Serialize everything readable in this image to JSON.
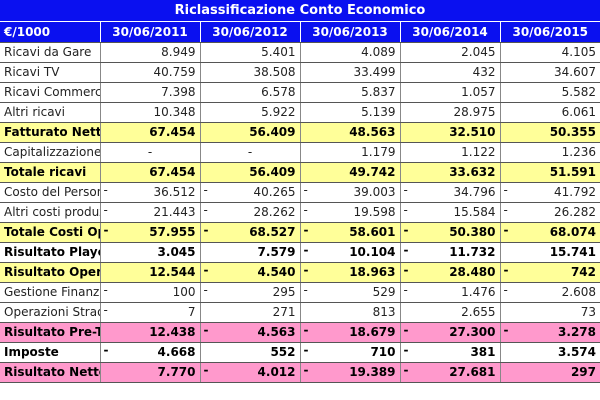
{
  "title": "Riclassificazione Conto Economico",
  "header": {
    "label": "€/1000",
    "columns": [
      "30/06/2011",
      "30/06/2012",
      "30/06/2013",
      "30/06/2014",
      "30/06/2015"
    ]
  },
  "colors": {
    "header": "#0a10f0",
    "highlight_yellow": "#ffff99",
    "highlight_pink": "#ff99cc"
  },
  "rows": [
    {
      "label": "Ricavi da Gare",
      "style": "plain",
      "cells": [
        [
          "",
          "8.949"
        ],
        [
          "",
          "5.401"
        ],
        [
          "",
          "4.089"
        ],
        [
          "",
          "2.045"
        ],
        [
          "",
          "4.105"
        ]
      ]
    },
    {
      "label": "Ricavi TV",
      "style": "plain",
      "cells": [
        [
          "",
          "40.759"
        ],
        [
          "",
          "38.508"
        ],
        [
          "",
          "33.499"
        ],
        [
          "",
          "432"
        ],
        [
          "",
          "34.607"
        ]
      ]
    },
    {
      "label": "Ricavi Commerciali",
      "style": "plain",
      "cells": [
        [
          "",
          "7.398"
        ],
        [
          "",
          "6.578"
        ],
        [
          "",
          "5.837"
        ],
        [
          "",
          "1.057"
        ],
        [
          "",
          "5.582"
        ]
      ]
    },
    {
      "label": "Altri ricavi",
      "style": "plain",
      "cells": [
        [
          "",
          "10.348"
        ],
        [
          "",
          "5.922"
        ],
        [
          "",
          "5.139"
        ],
        [
          "",
          "28.975"
        ],
        [
          "",
          "6.061"
        ]
      ]
    },
    {
      "label": "Fatturato Netto",
      "style": "bold yellow",
      "cells": [
        [
          "",
          "67.454"
        ],
        [
          "",
          "56.409"
        ],
        [
          "",
          "48.563"
        ],
        [
          "",
          "32.510"
        ],
        [
          "",
          "50.355"
        ]
      ]
    },
    {
      "label": "Capitalizzazione Costi Vivaio",
      "style": "plain",
      "cells": [
        [
          "",
          "-"
        ],
        [
          "",
          "-"
        ],
        [
          "",
          "1.179"
        ],
        [
          "",
          "1.122"
        ],
        [
          "",
          "1.236"
        ]
      ]
    },
    {
      "label": "Totale ricavi",
      "style": "bold yellow",
      "cells": [
        [
          "",
          "67.454"
        ],
        [
          "",
          "56.409"
        ],
        [
          "",
          "49.742"
        ],
        [
          "",
          "33.632"
        ],
        [
          "",
          "51.591"
        ]
      ]
    },
    {
      "label": "Costo del Personale",
      "style": "plain",
      "cells": [
        [
          "-",
          "36.512"
        ],
        [
          "-",
          "40.265"
        ],
        [
          "-",
          "39.003"
        ],
        [
          "-",
          "34.796"
        ],
        [
          "-",
          "41.792"
        ]
      ]
    },
    {
      "label": "Altri costi produzione",
      "style": "plain",
      "cells": [
        [
          "-",
          "21.443"
        ],
        [
          "-",
          "28.262"
        ],
        [
          "-",
          "19.598"
        ],
        [
          "-",
          "15.584"
        ],
        [
          "-",
          "26.282"
        ]
      ]
    },
    {
      "label": "Totale Costi Operativi",
      "style": "bold yellow",
      "cells": [
        [
          "-",
          "57.955"
        ],
        [
          "-",
          "68.527"
        ],
        [
          "-",
          "58.601"
        ],
        [
          "-",
          "50.380"
        ],
        [
          "-",
          "68.074"
        ]
      ]
    },
    {
      "label": "Risultato Player Trading",
      "style": "bold",
      "cells": [
        [
          "",
          "3.045"
        ],
        [
          "",
          "7.579"
        ],
        [
          "-",
          "10.104"
        ],
        [
          "-",
          "11.732"
        ],
        [
          "",
          "15.741"
        ]
      ]
    },
    {
      "label": "Risultato Operativo",
      "style": "bold yellow",
      "cells": [
        [
          "",
          "12.544"
        ],
        [
          "-",
          "4.540"
        ],
        [
          "-",
          "18.963"
        ],
        [
          "-",
          "28.480"
        ],
        [
          "-",
          "742"
        ]
      ]
    },
    {
      "label": "Gestione Finanziaria Netta",
      "style": "plain",
      "cells": [
        [
          "-",
          "100"
        ],
        [
          "-",
          "295"
        ],
        [
          "-",
          "529"
        ],
        [
          "-",
          "1.476"
        ],
        [
          "-",
          "2.608"
        ]
      ]
    },
    {
      "label": "Operazioni Straordinarie Nette",
      "style": "plain",
      "cells": [
        [
          "-",
          "7"
        ],
        [
          "",
          "271"
        ],
        [
          "",
          "813"
        ],
        [
          "",
          "2.655"
        ],
        [
          "",
          "73"
        ]
      ]
    },
    {
      "label": "Risultato Pre-Tax",
      "style": "bold pink",
      "cells": [
        [
          "",
          "12.438"
        ],
        [
          "-",
          "4.563"
        ],
        [
          "-",
          "18.679"
        ],
        [
          "-",
          "27.300"
        ],
        [
          "-",
          "3.278"
        ]
      ]
    },
    {
      "label": "Imposte",
      "style": "bold",
      "cells": [
        [
          "-",
          "4.668"
        ],
        [
          "",
          "552"
        ],
        [
          "-",
          "710"
        ],
        [
          "-",
          "381"
        ],
        [
          "",
          "3.574"
        ]
      ]
    },
    {
      "label": "Risultato Netto",
      "style": "bold pink",
      "cells": [
        [
          "",
          "7.770"
        ],
        [
          "-",
          "4.012"
        ],
        [
          "-",
          "19.389"
        ],
        [
          "-",
          "27.681"
        ],
        [
          "",
          "297"
        ]
      ]
    }
  ]
}
